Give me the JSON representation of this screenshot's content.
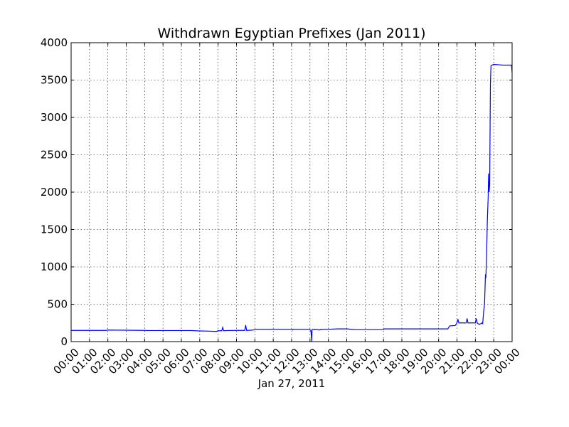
{
  "chart_data": {
    "type": "line",
    "title": "Withdrawn Egyptian Prefixes (Jan 2011)",
    "xlabel": "Jan 27, 2011",
    "ylabel": "",
    "x_unit": "hours",
    "xlim": [
      0,
      24
    ],
    "ylim": [
      0,
      4000
    ],
    "y_ticks": [
      0,
      500,
      1000,
      1500,
      2000,
      2500,
      3000,
      3500,
      4000
    ],
    "x_ticks": [
      0,
      1,
      2,
      3,
      4,
      5,
      6,
      7,
      8,
      9,
      10,
      11,
      12,
      13,
      14,
      15,
      16,
      17,
      18,
      19,
      20,
      21,
      22,
      23,
      24
    ],
    "x_tick_labels": [
      "00:00",
      "01:00",
      "02:00",
      "03:00",
      "04:00",
      "05:00",
      "06:00",
      "07:00",
      "08:00",
      "09:00",
      "10:00",
      "11:00",
      "12:00",
      "13:00",
      "14:00",
      "15:00",
      "16:00",
      "17:00",
      "18:00",
      "19:00",
      "20:00",
      "21:00",
      "22:00",
      "23:00",
      "00:00"
    ],
    "grid": true,
    "line_color": "#0000ff",
    "series": [
      {
        "x": [
          0.0,
          1.9,
          2.0,
          4.0,
          4.1,
          6.5,
          7.0,
          7.5,
          7.9,
          8.0,
          8.2,
          8.25,
          8.3,
          8.5,
          9.0,
          9.45,
          9.5,
          9.55,
          9.6,
          9.9,
          10.0,
          10.1,
          11.0,
          12.0,
          12.05,
          12.1,
          12.9,
          13.0,
          13.05,
          13.1,
          13.11,
          13.2,
          13.25,
          13.3,
          13.5,
          13.6,
          13.65,
          13.8,
          14.0,
          14.5,
          15.0,
          15.5,
          16.0,
          16.5,
          17.0,
          17.05,
          18.0,
          19.0,
          20.0,
          20.5,
          20.6,
          20.9,
          21.0,
          21.05,
          21.1,
          21.2,
          21.5,
          21.55,
          21.6,
          21.9,
          22.0,
          22.05,
          22.1,
          22.2,
          22.3,
          22.35,
          22.4,
          22.45,
          22.5,
          22.55,
          22.57,
          22.6,
          22.65,
          22.7,
          22.72,
          22.75,
          22.78,
          22.8,
          22.82,
          22.85,
          22.9,
          23.0,
          23.5,
          23.97,
          24.0
        ],
        "y": [
          150,
          150,
          155,
          150,
          148,
          148,
          143,
          140,
          136,
          145,
          145,
          190,
          145,
          148,
          150,
          150,
          220,
          150,
          150,
          155,
          160,
          165,
          165,
          165,
          155,
          165,
          165,
          160,
          145,
          0,
          160,
          165,
          160,
          165,
          155,
          165,
          160,
          165,
          165,
          170,
          170,
          160,
          160,
          160,
          160,
          170,
          170,
          170,
          170,
          170,
          210,
          215,
          250,
          300,
          250,
          250,
          250,
          310,
          250,
          250,
          250,
          310,
          250,
          230,
          240,
          250,
          240,
          400,
          500,
          900,
          850,
          1050,
          1600,
          1950,
          2250,
          2000,
          2100,
          2800,
          3450,
          3690,
          3700,
          3710,
          3700,
          3700,
          3600
        ]
      }
    ]
  }
}
